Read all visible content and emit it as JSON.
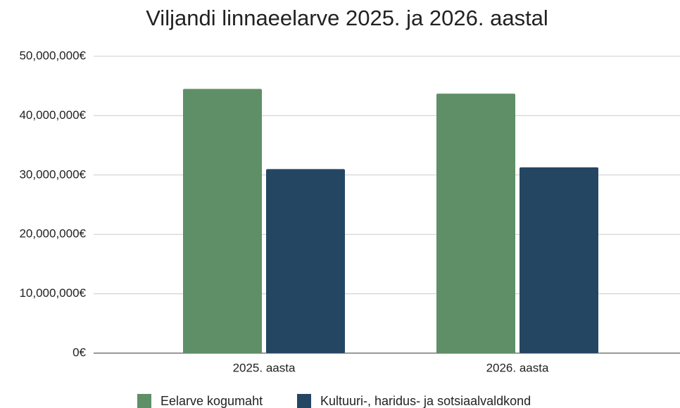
{
  "chart_data": {
    "type": "bar",
    "title": "Viljandi linnaeelarve 2025. ja 2026. aastal",
    "categories": [
      "2025. aasta",
      "2026. aasta"
    ],
    "series": [
      {
        "name": "Eelarve kogumaht",
        "color": "#5f8f67",
        "values": [
          44500000,
          43700000
        ]
      },
      {
        "name": "Kultuuri-, haridus- ja sotsiaalvaldkond",
        "color": "#254663",
        "values": [
          31000000,
          31300000
        ]
      }
    ],
    "ylim": [
      0,
      50000000
    ],
    "yticks": [
      {
        "value": 0,
        "label": "0€"
      },
      {
        "value": 10000000,
        "label": "10,000,000€"
      },
      {
        "value": 20000000,
        "label": "20,000,000€"
      },
      {
        "value": 30000000,
        "label": "30,000,000€"
      },
      {
        "value": 40000000,
        "label": "40,000,000€"
      },
      {
        "value": 50000000,
        "label": "50,000,000€"
      }
    ],
    "grid": true,
    "legend": "bottom"
  }
}
